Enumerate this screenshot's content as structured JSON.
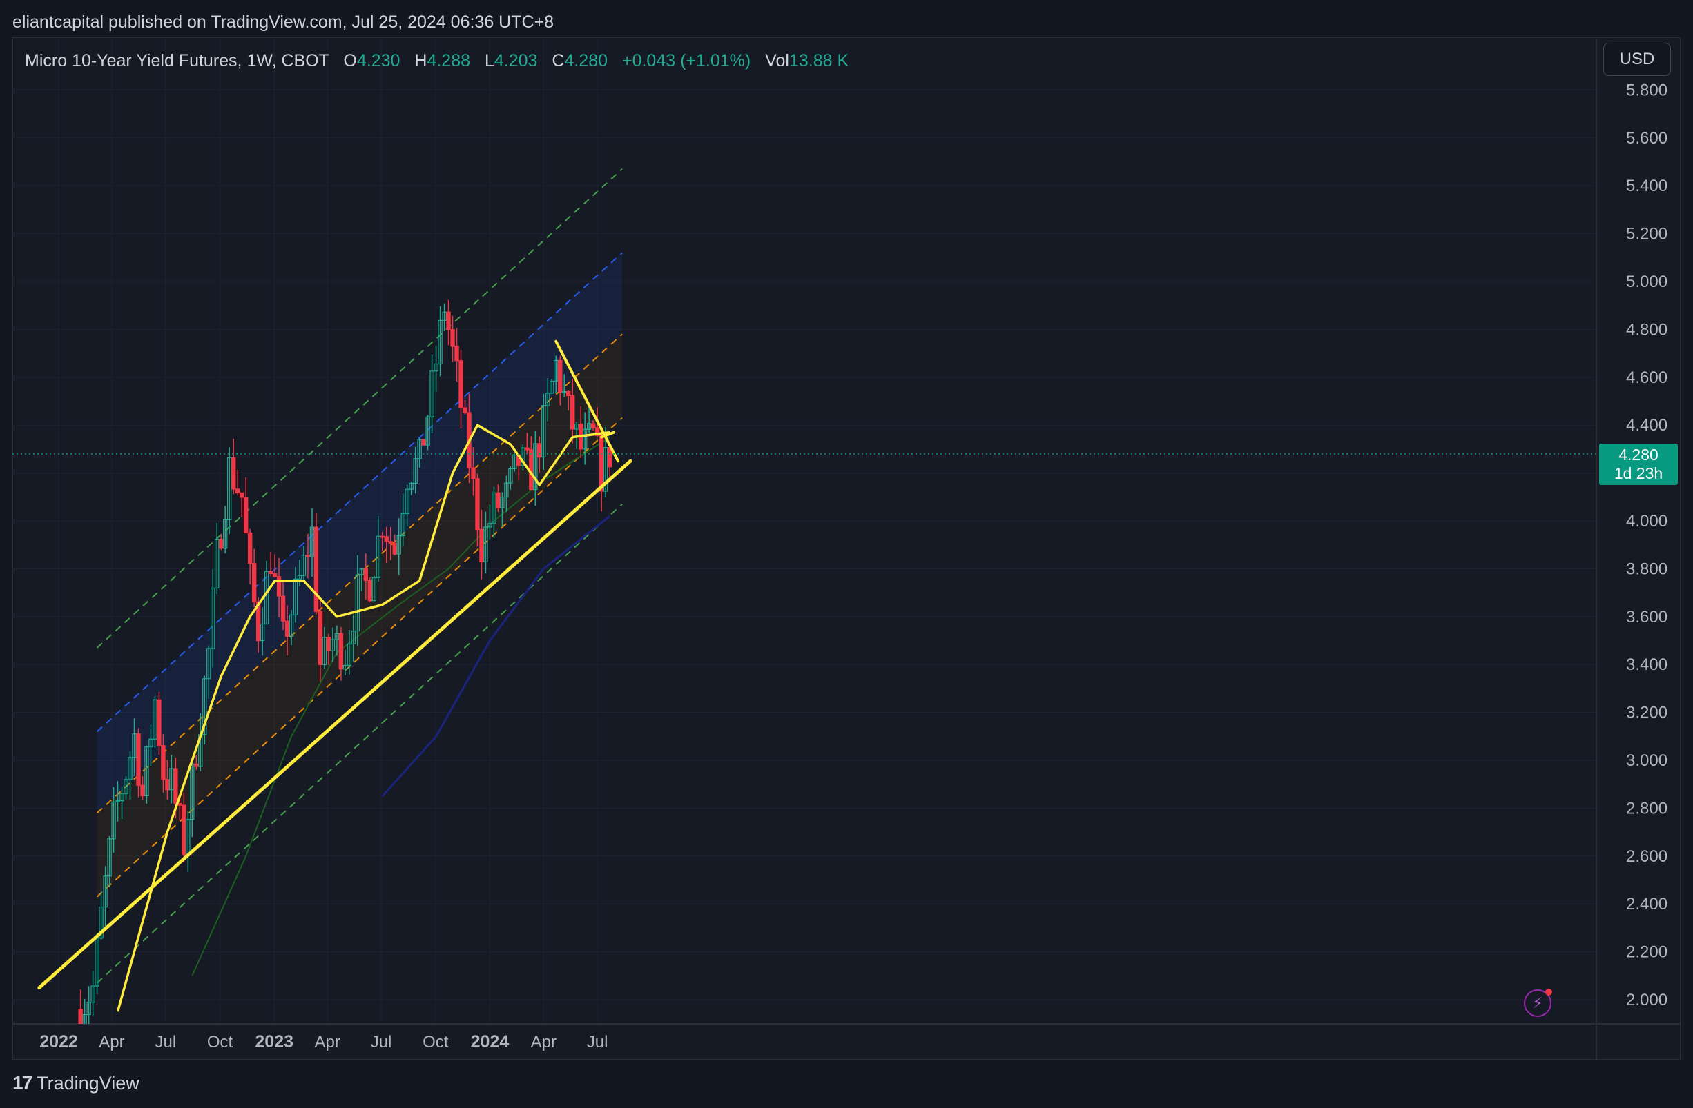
{
  "header": {
    "published": "eliantcapital published on TradingView.com, Jul 25, 2024 06:36 UTC+8"
  },
  "legend": {
    "symbol": "Micro 10-Year Yield Futures, 1W, CBOT",
    "open_label": "O",
    "open": "4.230",
    "high_label": "H",
    "high": "4.288",
    "low_label": "L",
    "low": "4.203",
    "close_label": "C",
    "close": "4.280",
    "change": "+0.043 (+1.01%)",
    "vol_label": "Vol",
    "vol": "13.88 K"
  },
  "currency_button": "USD",
  "last_price": {
    "value": "4.280",
    "countdown": "1d 23h"
  },
  "footer": {
    "brand": "TradingView"
  },
  "colors": {
    "up": "#22ab94",
    "down": "#f23645",
    "ma_fast": "#ffeb3b",
    "ma_mid": "#1b5e20",
    "ma_slow": "#1a237e",
    "trend": "#ffeb3b",
    "channel_outer": "#4caf50",
    "channel_upper": "#2962ff",
    "channel_inner": "#ff9800"
  },
  "chart_data": {
    "type": "candlestick",
    "timeframe": "1W",
    "y_axis": {
      "min": 1.9,
      "max": 5.9,
      "ticks": [
        "2.000",
        "2.200",
        "2.400",
        "2.600",
        "2.800",
        "3.000",
        "3.200",
        "3.400",
        "3.600",
        "3.800",
        "4.000",
        "4.200",
        "4.400",
        "4.600",
        "4.800",
        "5.000",
        "5.200",
        "5.400",
        "5.600",
        "5.800"
      ]
    },
    "x_axis": {
      "labels": [
        "2022",
        "Apr",
        "Jul",
        "Oct",
        "2023",
        "Apr",
        "Jul",
        "Oct",
        "2024",
        "Apr",
        "Jul"
      ]
    },
    "close_path": [
      [
        "2022-02-07",
        1.96
      ],
      [
        "2022-02-28",
        2.05
      ],
      [
        "2022-03-14",
        2.35
      ],
      [
        "2022-04-04",
        2.75
      ],
      [
        "2022-04-25",
        2.95
      ],
      [
        "2022-05-09",
        3.1
      ],
      [
        "2022-05-23",
        2.85
      ],
      [
        "2022-06-13",
        3.25
      ],
      [
        "2022-06-27",
        2.95
      ],
      [
        "2022-07-11",
        2.9
      ],
      [
        "2022-08-01",
        2.65
      ],
      [
        "2022-08-22",
        3.05
      ],
      [
        "2022-09-12",
        3.45
      ],
      [
        "2022-09-26",
        3.85
      ],
      [
        "2022-10-17",
        4.22
      ],
      [
        "2022-11-07",
        4.1
      ],
      [
        "2022-11-21",
        3.75
      ],
      [
        "2022-12-05",
        3.55
      ],
      [
        "2022-12-26",
        3.85
      ],
      [
        "2023-01-16",
        3.5
      ],
      [
        "2023-02-13",
        3.75
      ],
      [
        "2023-03-06",
        3.95
      ],
      [
        "2023-03-20",
        3.4
      ],
      [
        "2023-04-10",
        3.5
      ],
      [
        "2023-05-01",
        3.45
      ],
      [
        "2023-05-22",
        3.7
      ],
      [
        "2023-06-12",
        3.75
      ],
      [
        "2023-07-03",
        4.0
      ],
      [
        "2023-07-24",
        3.88
      ],
      [
        "2023-08-14",
        4.2
      ],
      [
        "2023-09-04",
        4.25
      ],
      [
        "2023-09-25",
        4.55
      ],
      [
        "2023-10-16",
        4.9
      ],
      [
        "2023-11-06",
        4.6
      ],
      [
        "2023-11-27",
        4.25
      ],
      [
        "2023-12-18",
        3.9
      ],
      [
        "2024-01-08",
        4.05
      ],
      [
        "2024-01-29",
        4.1
      ],
      [
        "2024-02-19",
        4.25
      ],
      [
        "2024-03-11",
        4.2
      ],
      [
        "2024-04-01",
        4.4
      ],
      [
        "2024-04-22",
        4.65
      ],
      [
        "2024-05-13",
        4.45
      ],
      [
        "2024-06-03",
        4.3
      ],
      [
        "2024-06-24",
        4.35
      ],
      [
        "2024-07-08",
        4.2
      ],
      [
        "2024-07-22",
        4.28
      ]
    ],
    "sma_fast": [
      [
        "2022-04-11",
        1.95
      ],
      [
        "2022-07-04",
        2.7
      ],
      [
        "2022-10-03",
        3.35
      ],
      [
        "2022-11-21",
        3.6
      ],
      [
        "2023-01-02",
        3.75
      ],
      [
        "2023-02-20",
        3.75
      ],
      [
        "2023-04-17",
        3.6
      ],
      [
        "2023-07-03",
        3.65
      ],
      [
        "2023-09-04",
        3.75
      ],
      [
        "2023-10-30",
        4.2
      ],
      [
        "2023-12-11",
        4.4
      ],
      [
        "2024-02-05",
        4.32
      ],
      [
        "2024-03-25",
        4.15
      ],
      [
        "2024-05-20",
        4.35
      ],
      [
        "2024-07-22",
        4.37
      ]
    ],
    "sma_mid": [
      [
        "2022-08-15",
        2.1
      ],
      [
        "2022-11-14",
        2.6
      ],
      [
        "2023-01-30",
        3.1
      ],
      [
        "2023-04-17",
        3.45
      ],
      [
        "2023-07-31",
        3.65
      ],
      [
        "2023-10-23",
        3.8
      ],
      [
        "2024-01-08",
        4.0
      ],
      [
        "2024-04-01",
        4.17
      ],
      [
        "2024-07-22",
        4.35
      ]
    ],
    "sma_slow": [
      [
        "2023-07-03",
        2.85
      ],
      [
        "2023-10-02",
        3.1
      ],
      [
        "2024-01-01",
        3.5
      ],
      [
        "2024-04-01",
        3.8
      ],
      [
        "2024-07-22",
        4.02
      ]
    ],
    "trendlines": [
      {
        "name": "support",
        "from": [
          "2021-11-29",
          2.05
        ],
        "to": [
          "2024-08-26",
          4.25
        ]
      },
      {
        "name": "wedge-top",
        "from": [
          "2024-04-22",
          4.75
        ],
        "to": [
          "2024-08-05",
          4.25
        ]
      },
      {
        "name": "wedge-bottom",
        "from": [
          "2024-07-08",
          4.35
        ],
        "to": [
          "2024-07-29",
          4.37
        ]
      }
    ],
    "channel": [
      {
        "name": "outer-top",
        "from": [
          "2022-03-07",
          3.47
        ],
        "to": [
          "2024-08-12",
          5.47
        ]
      },
      {
        "name": "upper",
        "from": [
          "2022-03-07",
          3.12
        ],
        "to": [
          "2024-08-12",
          5.12
        ]
      },
      {
        "name": "mid-upper",
        "from": [
          "2022-03-07",
          2.78
        ],
        "to": [
          "2024-08-12",
          4.78
        ]
      },
      {
        "name": "mid-lower",
        "from": [
          "2022-03-07",
          2.43
        ],
        "to": [
          "2024-08-12",
          4.43
        ]
      },
      {
        "name": "outer-bottom",
        "from": [
          "2022-03-07",
          2.07
        ],
        "to": [
          "2024-08-12",
          4.07
        ]
      }
    ],
    "last_price_line": 4.28
  }
}
